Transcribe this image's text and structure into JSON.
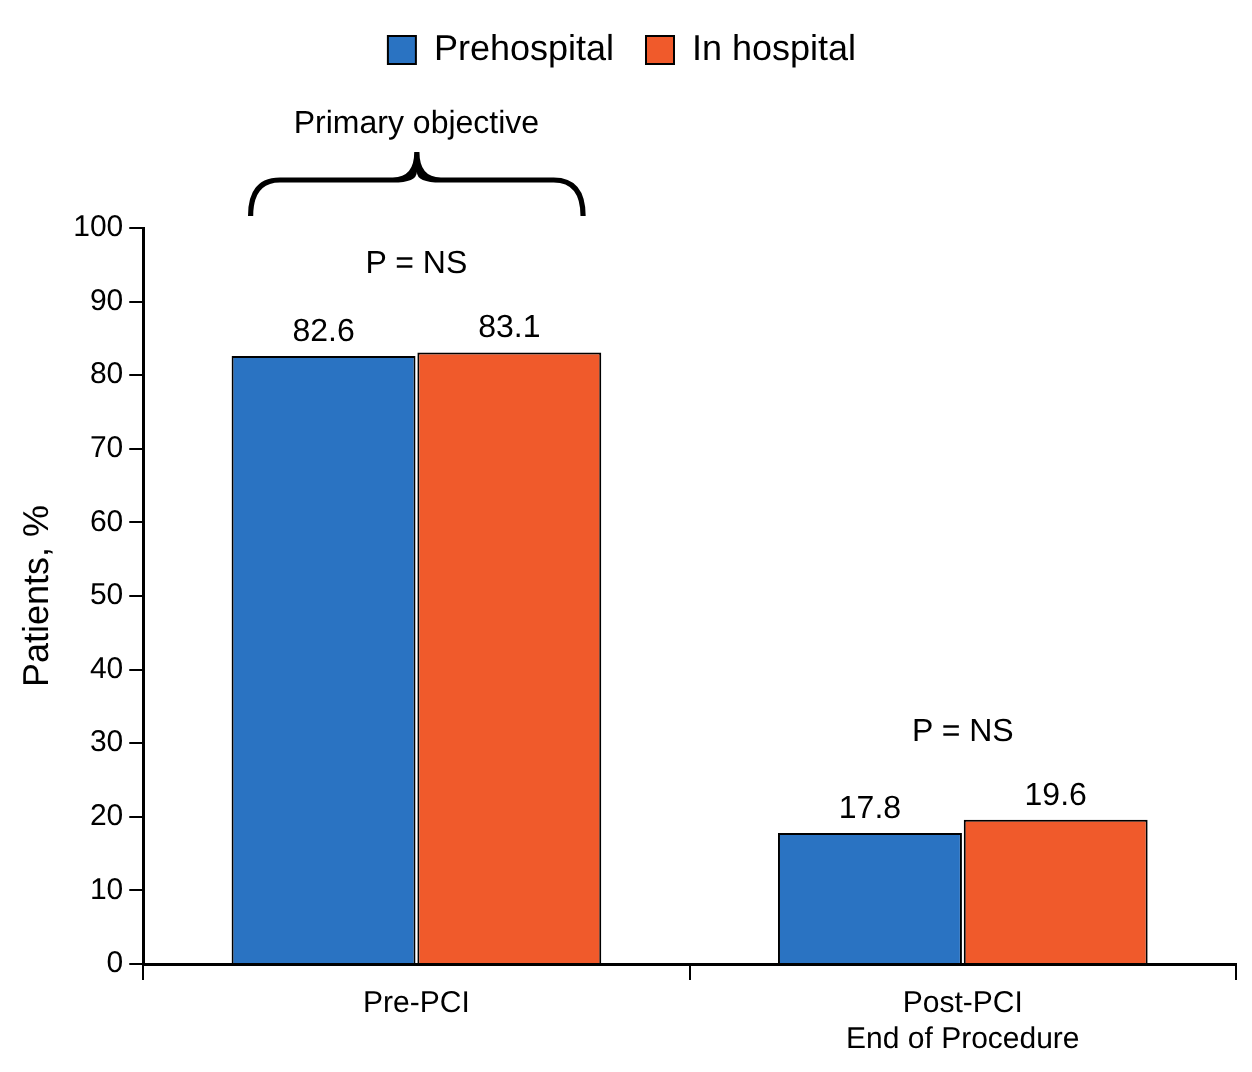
{
  "chart_data": {
    "type": "bar",
    "ylabel": "Patients, %",
    "categories": [
      "Pre-PCI",
      "Post-PCI\nEnd of Procedure"
    ],
    "series": [
      {
        "name": "Prehospital",
        "color": "#2a73c2",
        "values": [
          82.6,
          17.8
        ]
      },
      {
        "name": "In hospital",
        "color": "#f05a2b",
        "values": [
          83.1,
          19.6
        ]
      }
    ],
    "ylim": [
      0,
      100
    ],
    "yticks": [
      0,
      10,
      20,
      30,
      40,
      50,
      60,
      70,
      80,
      90,
      100
    ],
    "grid": false,
    "legend": "top",
    "data_labels": true,
    "annotations": [
      "Primary objective",
      "P = NS",
      "P = NS"
    ]
  }
}
